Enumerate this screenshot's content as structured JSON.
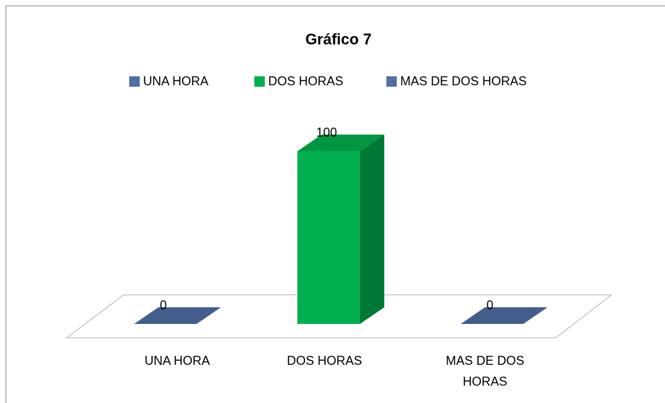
{
  "chart_data": {
    "type": "bar3d",
    "title": "Gráfico 7",
    "categories": [
      "UNA HORA",
      "DOS HORAS",
      "MAS DE DOS HORAS"
    ],
    "values": [
      0,
      100,
      0
    ],
    "colors": [
      "#4f6fa5",
      "#00b050",
      "#4f6fa5"
    ],
    "legend": "top"
  }
}
